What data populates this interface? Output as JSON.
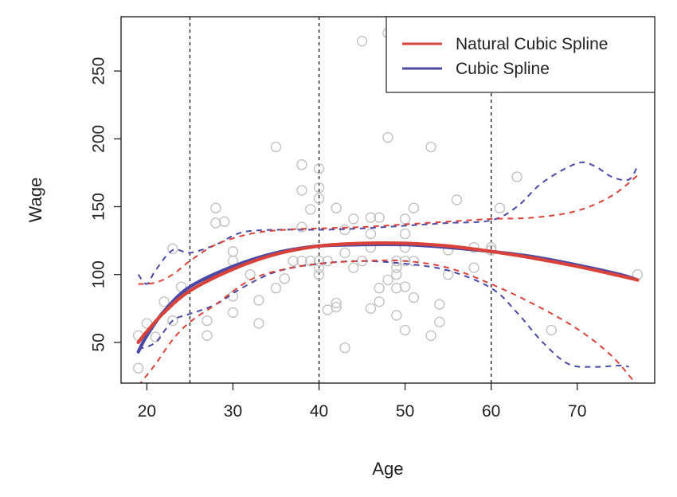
{
  "chart_data": {
    "type": "scatter",
    "title": "",
    "xlabel": "Age",
    "ylabel": "Wage",
    "xlim": [
      17,
      79
    ],
    "ylim": [
      20,
      290
    ],
    "xticks": [
      20,
      30,
      40,
      50,
      60,
      70
    ],
    "yticks": [
      50,
      100,
      150,
      200,
      250
    ],
    "knots": [
      25,
      40,
      60
    ],
    "legend_position": "top-right",
    "legend": [
      {
        "name": "Natural Cubic Spline",
        "color": "#d9423a"
      },
      {
        "name": "Cubic Spline",
        "color": "#4a4aa6"
      }
    ],
    "points": [
      [
        19,
        31
      ],
      [
        19,
        55
      ],
      [
        20,
        64
      ],
      [
        21,
        54
      ],
      [
        22,
        80
      ],
      [
        23,
        66
      ],
      [
        23,
        119
      ],
      [
        24,
        91
      ],
      [
        27,
        55
      ],
      [
        27,
        66
      ],
      [
        28,
        138
      ],
      [
        28,
        149
      ],
      [
        29,
        139
      ],
      [
        30,
        72
      ],
      [
        30,
        84
      ],
      [
        30,
        110
      ],
      [
        30,
        117
      ],
      [
        32,
        100
      ],
      [
        33,
        81
      ],
      [
        33,
        64
      ],
      [
        35,
        194
      ],
      [
        35,
        90
      ],
      [
        36,
        97
      ],
      [
        37,
        110
      ],
      [
        38,
        181
      ],
      [
        38,
        162
      ],
      [
        38,
        135
      ],
      [
        38,
        110
      ],
      [
        39,
        148
      ],
      [
        39,
        110
      ],
      [
        40,
        178
      ],
      [
        40,
        164
      ],
      [
        40,
        156
      ],
      [
        40,
        110
      ],
      [
        40,
        105
      ],
      [
        40,
        100
      ],
      [
        41,
        74
      ],
      [
        41,
        110
      ],
      [
        42,
        149
      ],
      [
        42,
        76
      ],
      [
        42,
        79
      ],
      [
        43,
        46
      ],
      [
        43,
        116
      ],
      [
        43,
        133
      ],
      [
        44,
        141
      ],
      [
        44,
        105
      ],
      [
        45,
        272
      ],
      [
        45,
        110
      ],
      [
        46,
        142
      ],
      [
        46,
        130
      ],
      [
        46,
        120
      ],
      [
        46,
        75
      ],
      [
        47,
        80
      ],
      [
        47,
        90
      ],
      [
        47,
        142
      ],
      [
        48,
        278
      ],
      [
        48,
        201
      ],
      [
        48,
        96
      ],
      [
        49,
        110
      ],
      [
        49,
        105
      ],
      [
        49,
        100
      ],
      [
        49,
        90
      ],
      [
        49,
        70
      ],
      [
        50,
        141
      ],
      [
        50,
        130
      ],
      [
        50,
        120
      ],
      [
        50,
        110
      ],
      [
        50,
        91
      ],
      [
        50,
        59
      ],
      [
        51,
        282
      ],
      [
        51,
        149
      ],
      [
        51,
        110
      ],
      [
        51,
        83
      ],
      [
        53,
        194
      ],
      [
        53,
        55
      ],
      [
        54,
        78
      ],
      [
        54,
        65
      ],
      [
        55,
        118
      ],
      [
        55,
        100
      ],
      [
        56,
        155
      ],
      [
        58,
        120
      ],
      [
        58,
        105
      ],
      [
        60,
        120
      ],
      [
        60,
        118
      ],
      [
        61,
        149
      ],
      [
        63,
        172
      ],
      [
        67,
        59
      ],
      [
        77,
        100
      ]
    ],
    "series": [
      {
        "name": "Natural Cubic Spline",
        "color": "#d9423a",
        "fit": [
          [
            19,
            50
          ],
          [
            20,
            58
          ],
          [
            22,
            72
          ],
          [
            25,
            88
          ],
          [
            30,
            104
          ],
          [
            35,
            115
          ],
          [
            40,
            121
          ],
          [
            45,
            123
          ],
          [
            50,
            123
          ],
          [
            55,
            121
          ],
          [
            60,
            117
          ],
          [
            65,
            112
          ],
          [
            70,
            106
          ],
          [
            75,
            99
          ],
          [
            77,
            96
          ]
        ],
        "upper": [
          [
            19,
            93
          ],
          [
            21,
            94
          ],
          [
            23,
            100
          ],
          [
            25,
            110
          ],
          [
            28,
            122
          ],
          [
            32,
            130
          ],
          [
            36,
            133
          ],
          [
            40,
            134
          ],
          [
            45,
            135
          ],
          [
            50,
            137
          ],
          [
            55,
            139
          ],
          [
            60,
            141
          ],
          [
            65,
            142
          ],
          [
            70,
            147
          ],
          [
            74,
            158
          ],
          [
            77,
            173
          ]
        ],
        "lower": [
          [
            19,
            18
          ],
          [
            21,
            34
          ],
          [
            23,
            52
          ],
          [
            25,
            65
          ],
          [
            28,
            78
          ],
          [
            32,
            96
          ],
          [
            36,
            104
          ],
          [
            40,
            108
          ],
          [
            45,
            110
          ],
          [
            50,
            110
          ],
          [
            55,
            105
          ],
          [
            60,
            93
          ],
          [
            65,
            78
          ],
          [
            70,
            60
          ],
          [
            74,
            40
          ],
          [
            77,
            18
          ]
        ]
      },
      {
        "name": "Cubic Spline",
        "color": "#4a4aa6",
        "fit": [
          [
            19,
            43
          ],
          [
            20,
            55
          ],
          [
            22,
            73
          ],
          [
            25,
            91
          ],
          [
            30,
            106
          ],
          [
            35,
            116
          ],
          [
            40,
            121
          ],
          [
            45,
            122
          ],
          [
            50,
            122
          ],
          [
            55,
            120
          ],
          [
            60,
            117
          ],
          [
            65,
            113
          ],
          [
            70,
            107
          ],
          [
            75,
            100
          ],
          [
            77,
            96
          ]
        ],
        "upper": [
          [
            19,
            100
          ],
          [
            20,
            93
          ],
          [
            21,
            103
          ],
          [
            23,
            118
          ],
          [
            25,
            116
          ],
          [
            28,
            122
          ],
          [
            31,
            131
          ],
          [
            35,
            133
          ],
          [
            40,
            133
          ],
          [
            45,
            134
          ],
          [
            50,
            136
          ],
          [
            55,
            138
          ],
          [
            60,
            140
          ],
          [
            63,
            150
          ],
          [
            66,
            168
          ],
          [
            70,
            182
          ],
          [
            72,
            180
          ],
          [
            74,
            172
          ],
          [
            76,
            170
          ],
          [
            77,
            180
          ]
        ],
        "lower": [
          [
            19,
            45
          ],
          [
            21,
            50
          ],
          [
            23,
            66
          ],
          [
            25,
            71
          ],
          [
            28,
            78
          ],
          [
            31,
            90
          ],
          [
            35,
            102
          ],
          [
            40,
            108
          ],
          [
            45,
            110
          ],
          [
            50,
            108
          ],
          [
            55,
            103
          ],
          [
            60,
            90
          ],
          [
            63,
            72
          ],
          [
            66,
            50
          ],
          [
            69,
            34
          ],
          [
            72,
            32
          ],
          [
            75,
            33
          ],
          [
            76,
            32
          ]
        ]
      }
    ]
  }
}
